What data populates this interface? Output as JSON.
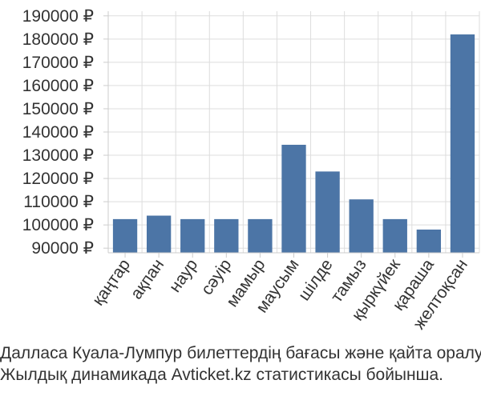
{
  "chart_data": {
    "type": "bar",
    "categories": [
      "қаңтар",
      "ақпан",
      "наур",
      "сәуір",
      "мамыр",
      "маусым",
      "шілде",
      "тамыз",
      "қыркүйек",
      "қараша",
      "желтоқсан"
    ],
    "values": [
      102500,
      104000,
      102500,
      102500,
      102500,
      134500,
      123000,
      111000,
      102500,
      98000,
      182000
    ],
    "ylim": [
      88000,
      192000
    ],
    "yticks": [
      90000,
      100000,
      110000,
      120000,
      130000,
      140000,
      150000,
      160000,
      170000,
      180000,
      190000
    ],
    "ytick_labels": [
      "90000 ₽",
      "100000 ₽",
      "110000 ₽",
      "120000 ₽",
      "130000 ₽",
      "140000 ₽",
      "150000 ₽",
      "160000 ₽",
      "170000 ₽",
      "180000 ₽",
      "190000 ₽"
    ],
    "grid": true,
    "bar_color": "#4c75a6"
  },
  "caption": {
    "line1": "Далласа Куала-Лумпур билеттердің бағасы және қайта оралу",
    "line2": "Жылдық динамикада Avticket.kz статистикасы бойынша."
  }
}
